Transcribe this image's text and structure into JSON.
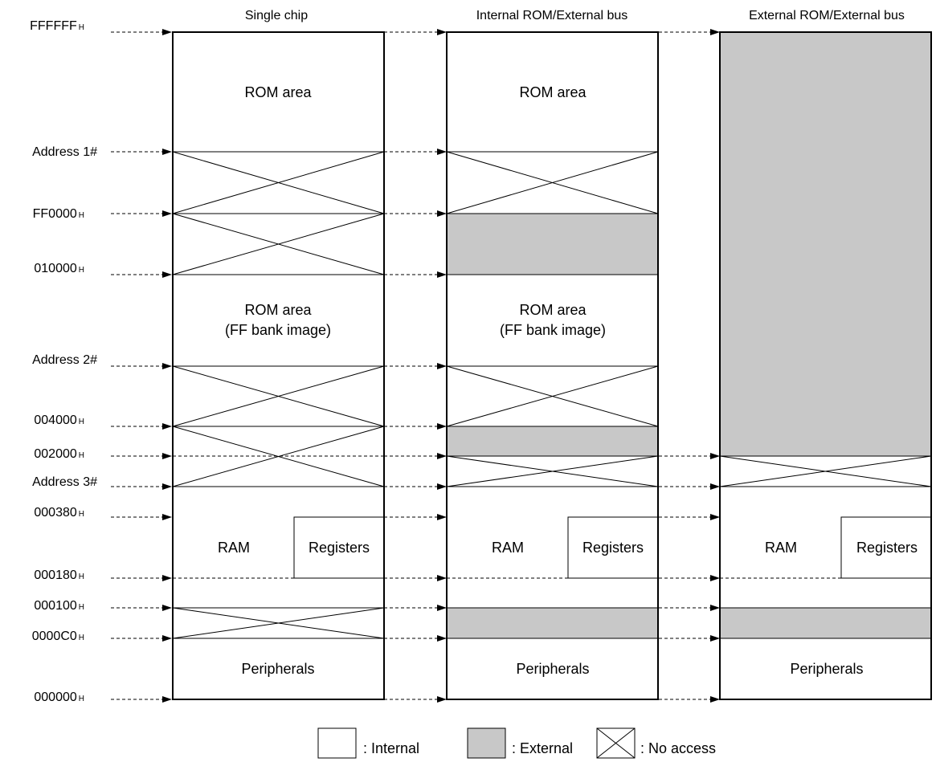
{
  "columns": [
    {
      "title": "Single chip"
    },
    {
      "title": "Internal ROM/External bus"
    },
    {
      "title": "External ROM/External bus"
    }
  ],
  "addresses": [
    {
      "value": "FFFFFF",
      "suffix": "H"
    },
    {
      "value": "Address 1#",
      "suffix": ""
    },
    {
      "value": "FF0000",
      "suffix": "H"
    },
    {
      "value": "010000",
      "suffix": "H"
    },
    {
      "value": "Address 2#",
      "suffix": ""
    },
    {
      "value": "004000",
      "suffix": "H"
    },
    {
      "value": "002000",
      "suffix": "H"
    },
    {
      "value": "Address 3#",
      "suffix": ""
    },
    {
      "value": "000380",
      "suffix": "H"
    },
    {
      "value": "000180",
      "suffix": "H"
    },
    {
      "value": "000100",
      "suffix": "H"
    },
    {
      "value": "0000C0",
      "suffix": "H"
    },
    {
      "value": "000000",
      "suffix": "H"
    }
  ],
  "area_labels": {
    "rom_area": "ROM area",
    "rom_area_ff": "ROM area",
    "ff_bank_image": "(FF bank image)",
    "ram": "RAM",
    "registers": "Registers",
    "peripherals": "Peripherals"
  },
  "legend": {
    "internal": ": Internal",
    "external": ": External",
    "no_access": ": No access"
  },
  "colors": {
    "external_fill": "#c8c8c8",
    "line": "#000000"
  }
}
